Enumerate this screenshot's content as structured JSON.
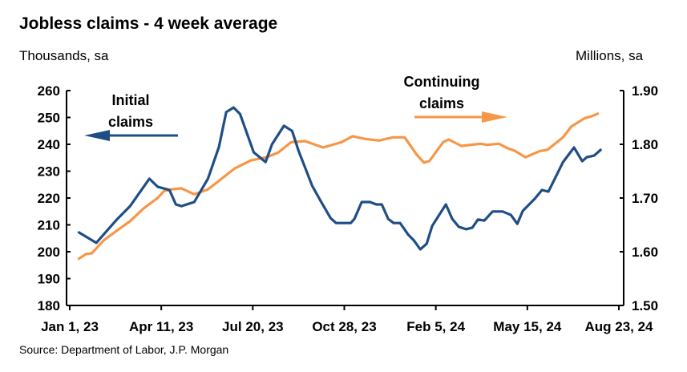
{
  "chart_data": {
    "type": "line",
    "title": "Jobless claims - 4 week average",
    "ylabel_left": "Thousands, sa",
    "ylabel_right": "Millions, sa",
    "source": "Source: Department of Labor, J.P. Morgan",
    "xlim": [
      "2023-01-01",
      "2024-08-23"
    ],
    "x_ticks": [
      "2023-01-01",
      "2023-04-11",
      "2023-07-20",
      "2023-10-28",
      "2024-02-05",
      "2024-05-15",
      "2024-08-23"
    ],
    "x_tick_labels": [
      "Jan 1, 23",
      "Apr 11, 23",
      "Jul 20, 23",
      "Oct 28, 23",
      "Feb 5, 24",
      "May 15, 24",
      "Aug 23, 24"
    ],
    "ylim_left": [
      180,
      260
    ],
    "y_ticks_left": [
      "180",
      "190",
      "200",
      "210",
      "220",
      "230",
      "240",
      "250",
      "260"
    ],
    "ylim_right": [
      1.5,
      1.9
    ],
    "y_ticks_right": [
      "1.50",
      "1.60",
      "1.70",
      "1.80",
      "1.90"
    ],
    "grid": false,
    "annotations": {
      "initial": [
        "Initial",
        "claims"
      ],
      "continuing": [
        "Continuing",
        "claims"
      ]
    },
    "colors": {
      "initial": "#1f4e85",
      "continuing": "#f79646"
    },
    "series": [
      {
        "name": "Initial claims",
        "axis": "left",
        "points": [
          [
            "2023-01-11",
            207.2
          ],
          [
            "2023-01-30",
            203.3
          ],
          [
            "2023-02-22",
            212.2
          ],
          [
            "2023-03-08",
            217
          ],
          [
            "2023-03-29",
            227.2
          ],
          [
            "2023-04-07",
            224.2
          ],
          [
            "2023-04-20",
            223
          ],
          [
            "2023-04-27",
            217.6
          ],
          [
            "2023-05-03",
            217
          ],
          [
            "2023-05-17",
            218.5
          ],
          [
            "2023-06-01",
            227.2
          ],
          [
            "2023-06-13",
            239
          ],
          [
            "2023-06-21",
            252
          ],
          [
            "2023-06-29",
            253.7
          ],
          [
            "2023-07-06",
            251.3
          ],
          [
            "2023-07-21",
            237
          ],
          [
            "2023-08-03",
            233.4
          ],
          [
            "2023-08-10",
            240
          ],
          [
            "2023-08-23",
            246.9
          ],
          [
            "2023-09-01",
            245
          ],
          [
            "2023-09-08",
            237.6
          ],
          [
            "2023-09-23",
            224.5
          ],
          [
            "2023-10-02",
            219
          ],
          [
            "2023-10-13",
            212.5
          ],
          [
            "2023-10-19",
            210.7
          ],
          [
            "2023-11-04",
            210.7
          ],
          [
            "2023-11-08",
            212.2
          ],
          [
            "2023-11-16",
            218.5
          ],
          [
            "2023-11-25",
            218.5
          ],
          [
            "2023-12-02",
            217.6
          ],
          [
            "2023-12-08",
            217.6
          ],
          [
            "2023-12-15",
            212.2
          ],
          [
            "2023-12-21",
            210.7
          ],
          [
            "2023-12-28",
            210.7
          ],
          [
            "2024-01-06",
            206.3
          ],
          [
            "2024-01-12",
            204.2
          ],
          [
            "2024-01-19",
            200.9
          ],
          [
            "2024-01-26",
            203
          ],
          [
            "2024-02-01",
            209.6
          ],
          [
            "2024-02-16",
            217.6
          ],
          [
            "2024-02-23",
            212.2
          ],
          [
            "2024-03-01",
            209.3
          ],
          [
            "2024-03-09",
            208.4
          ],
          [
            "2024-03-16",
            209
          ],
          [
            "2024-03-22",
            212
          ],
          [
            "2024-03-29",
            211.6
          ],
          [
            "2024-04-07",
            215
          ],
          [
            "2024-04-18",
            215
          ],
          [
            "2024-04-27",
            213.7
          ],
          [
            "2024-05-04",
            210.4
          ],
          [
            "2024-05-10",
            215.2
          ],
          [
            "2024-05-23",
            219.7
          ],
          [
            "2024-05-31",
            223
          ],
          [
            "2024-06-07",
            222.4
          ],
          [
            "2024-06-14",
            227.2
          ],
          [
            "2024-06-23",
            233.4
          ],
          [
            "2024-07-05",
            238.8
          ],
          [
            "2024-07-14",
            233.7
          ],
          [
            "2024-07-19",
            235.2
          ],
          [
            "2024-07-27",
            235.8
          ],
          [
            "2024-08-03",
            237.9
          ]
        ]
      },
      {
        "name": "Continuing claims",
        "axis": "right",
        "points": [
          [
            "2023-01-11",
            1.587
          ],
          [
            "2023-01-19",
            1.596
          ],
          [
            "2023-01-25",
            1.597
          ],
          [
            "2023-02-07",
            1.621
          ],
          [
            "2023-02-22",
            1.64
          ],
          [
            "2023-03-08",
            1.657
          ],
          [
            "2023-03-23",
            1.681
          ],
          [
            "2023-04-07",
            1.7
          ],
          [
            "2023-04-14",
            1.713
          ],
          [
            "2023-04-21",
            1.716
          ],
          [
            "2023-05-03",
            1.718
          ],
          [
            "2023-05-17",
            1.707
          ],
          [
            "2023-06-01",
            1.716
          ],
          [
            "2023-06-16",
            1.736
          ],
          [
            "2023-06-30",
            1.755
          ],
          [
            "2023-07-18",
            1.77
          ],
          [
            "2023-08-04",
            1.776
          ],
          [
            "2023-08-17",
            1.785
          ],
          [
            "2023-08-31",
            1.804
          ],
          [
            "2023-09-15",
            1.806
          ],
          [
            "2023-10-05",
            1.794
          ],
          [
            "2023-10-25",
            1.804
          ],
          [
            "2023-11-06",
            1.815
          ],
          [
            "2023-11-20",
            1.81
          ],
          [
            "2023-12-05",
            1.807
          ],
          [
            "2023-12-20",
            1.813
          ],
          [
            "2024-01-02",
            1.813
          ],
          [
            "2024-01-15",
            1.781
          ],
          [
            "2024-01-23",
            1.766
          ],
          [
            "2024-01-29",
            1.769
          ],
          [
            "2024-02-13",
            1.804
          ],
          [
            "2024-02-19",
            1.809
          ],
          [
            "2024-03-04",
            1.797
          ],
          [
            "2024-03-25",
            1.801
          ],
          [
            "2024-04-01",
            1.799
          ],
          [
            "2024-04-14",
            1.801
          ],
          [
            "2024-04-23",
            1.793
          ],
          [
            "2024-05-01",
            1.788
          ],
          [
            "2024-05-13",
            1.776
          ],
          [
            "2024-05-28",
            1.787
          ],
          [
            "2024-06-06",
            1.79
          ],
          [
            "2024-06-23",
            1.813
          ],
          [
            "2024-07-02",
            1.833
          ],
          [
            "2024-07-17",
            1.849
          ],
          [
            "2024-07-24",
            1.852
          ],
          [
            "2024-07-31",
            1.857
          ]
        ]
      }
    ]
  }
}
